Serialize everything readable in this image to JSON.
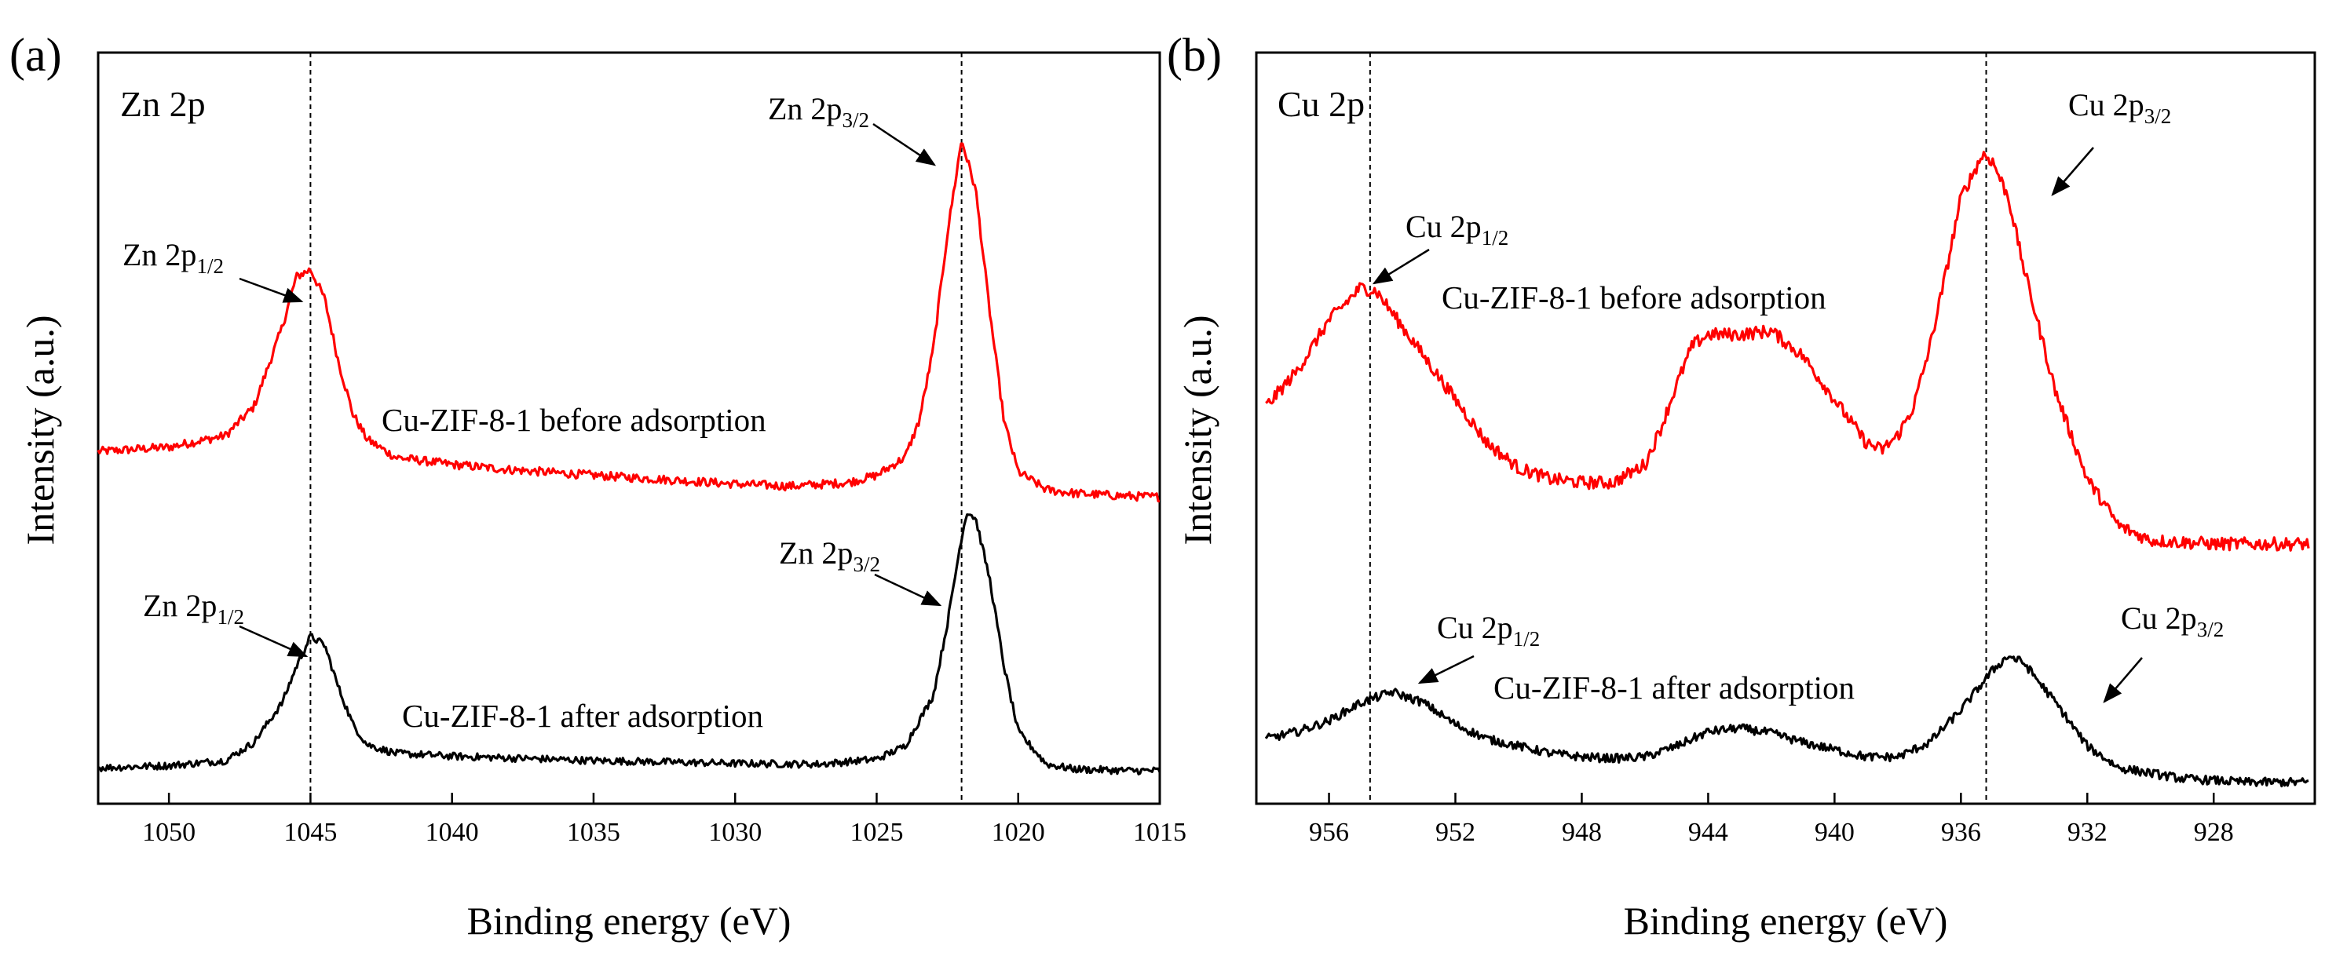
{
  "chart_data": [
    {
      "type": "line",
      "panel_label": "(a)",
      "title": "Zn 2p",
      "xlabel": "Binding energy (eV)",
      "ylabel": "Intensity (a.u.)",
      "xlim": [
        1052.5,
        1015
      ],
      "ylim": [
        0,
        100
      ],
      "x_reversed": true,
      "xticks": [
        1050,
        1045,
        1040,
        1035,
        1030,
        1025,
        1020,
        1015
      ],
      "vlines": [
        1045,
        1022
      ],
      "series": [
        {
          "name": "Cu-ZIF-8-1 before adsorption",
          "color": "#ff0000",
          "noise": 0.6,
          "points": [
            [
              1052.5,
              47.8
            ],
            [
              1050,
              48.4
            ],
            [
              1048,
              50
            ],
            [
              1047,
              54
            ],
            [
              1046,
              65
            ],
            [
              1045.5,
              72
            ],
            [
              1045,
              73
            ],
            [
              1044.5,
              69
            ],
            [
              1044,
              60
            ],
            [
              1043.5,
              53
            ],
            [
              1043,
              49.5
            ],
            [
              1042,
              47
            ],
            [
              1040,
              46
            ],
            [
              1038,
              45.3
            ],
            [
              1035,
              44.5
            ],
            [
              1032,
              43.8
            ],
            [
              1030,
              43.3
            ],
            [
              1028,
              43
            ],
            [
              1026,
              43.5
            ],
            [
              1025,
              44.5
            ],
            [
              1024,
              47
            ],
            [
              1023.5,
              52
            ],
            [
              1023,
              62
            ],
            [
              1022.5,
              78
            ],
            [
              1022,
              91
            ],
            [
              1021.5,
              84
            ],
            [
              1021,
              67
            ],
            [
              1020.5,
              52
            ],
            [
              1020,
              45
            ],
            [
              1019,
              42.5
            ],
            [
              1018,
              42
            ],
            [
              1016,
              41.6
            ],
            [
              1015,
              41.5
            ]
          ]
        },
        {
          "name": "Cu-ZIF-8-1 after adsorption",
          "color": "#000000",
          "noise": 0.5,
          "points": [
            [
              1052.5,
              4
            ],
            [
              1050,
              4.3
            ],
            [
              1048,
              5
            ],
            [
              1047,
              7.5
            ],
            [
              1046,
              13
            ],
            [
              1045.5,
              18
            ],
            [
              1045,
              22.2
            ],
            [
              1044.5,
              21
            ],
            [
              1044,
              15
            ],
            [
              1043.5,
              10
            ],
            [
              1043,
              7.2
            ],
            [
              1042,
              6
            ],
            [
              1040,
              5.6
            ],
            [
              1035,
              5
            ],
            [
              1030,
              4.6
            ],
            [
              1027,
              4.5
            ],
            [
              1025,
              5.2
            ],
            [
              1024,
              7
            ],
            [
              1023,
              14
            ],
            [
              1022.5,
              24
            ],
            [
              1022,
              36
            ],
            [
              1021.8,
              39.5
            ],
            [
              1021.5,
              38.5
            ],
            [
              1021,
              30
            ],
            [
              1020.5,
              18
            ],
            [
              1020,
              9
            ],
            [
              1019,
              4.5
            ],
            [
              1018,
              3.8
            ],
            [
              1016,
              3.6
            ],
            [
              1015,
              3.6
            ]
          ]
        }
      ],
      "annotations": [
        {
          "main": "Zn 2p",
          "sub": "1/2"
        },
        {
          "main": "Zn 2p",
          "sub": "3/2"
        },
        {
          "main": "Zn 2p",
          "sub": "1/2"
        },
        {
          "main": "Zn 2p",
          "sub": "3/2"
        }
      ]
    },
    {
      "type": "line",
      "panel_label": "(b)",
      "title": "Cu 2p",
      "xlabel": "Binding energy (eV)",
      "ylabel": "Intensity (a.u.)",
      "xlim": [
        958.3,
        924.8
      ],
      "ylim": [
        0,
        100
      ],
      "x_reversed": true,
      "xticks": [
        956,
        952,
        948,
        944,
        940,
        936,
        932,
        928
      ],
      "vlines": [
        954.7,
        935.2
      ],
      "series": [
        {
          "name": "Cu-ZIF-8-1 before adsorption",
          "color": "#ff0000",
          "noise": 0.9,
          "points": [
            [
              958,
              54
            ],
            [
              957,
              59
            ],
            [
              956,
              66
            ],
            [
              955,
              70.5
            ],
            [
              954.5,
              70
            ],
            [
              954,
              67
            ],
            [
              953,
              61
            ],
            [
              952,
              55
            ],
            [
              951,
              49
            ],
            [
              950,
              45.5
            ],
            [
              949,
              44
            ],
            [
              948,
              43.5
            ],
            [
              947,
              43.5
            ],
            [
              946,
              46
            ],
            [
              945.5,
              51
            ],
            [
              945,
              57
            ],
            [
              944.5,
              62.5
            ],
            [
              944,
              64
            ],
            [
              943,
              64
            ],
            [
              942,
              64.5
            ],
            [
              941,
              61
            ],
            [
              940,
              55
            ],
            [
              939,
              49
            ],
            [
              938.5,
              48
            ],
            [
              938,
              50
            ],
            [
              937.5,
              54
            ],
            [
              937,
              62
            ],
            [
              936.5,
              72
            ],
            [
              936,
              83
            ],
            [
              935.3,
              89
            ],
            [
              935,
              88
            ],
            [
              934.5,
              83
            ],
            [
              934,
              73
            ],
            [
              933,
              56
            ],
            [
              932,
              44
            ],
            [
              931,
              37.5
            ],
            [
              930,
              35.5
            ],
            [
              928,
              35
            ],
            [
              926,
              35
            ],
            [
              925,
              35
            ]
          ]
        },
        {
          "name": "Cu-ZIF-8-1 after adsorption",
          "color": "#000000",
          "noise": 0.6,
          "points": [
            [
              958,
              8
            ],
            [
              957,
              9
            ],
            [
              956,
              10.5
            ],
            [
              955,
              13
            ],
            [
              954,
              14.5
            ],
            [
              953,
              13
            ],
            [
              952,
              10
            ],
            [
              951,
              8
            ],
            [
              950,
              7
            ],
            [
              949,
              6
            ],
            [
              948,
              5.5
            ],
            [
              947,
              5.3
            ],
            [
              946,
              5.5
            ],
            [
              945,
              7
            ],
            [
              944,
              9
            ],
            [
              943,
              9.5
            ],
            [
              942,
              8.8
            ],
            [
              941,
              7.5
            ],
            [
              940,
              6.5
            ],
            [
              939,
              5.5
            ],
            [
              938,
              5.5
            ],
            [
              937,
              7.5
            ],
            [
              936,
              12
            ],
            [
              935,
              17.5
            ],
            [
              934.5,
              19.5
            ],
            [
              934,
              18.5
            ],
            [
              933,
              13
            ],
            [
              932,
              7
            ],
            [
              931,
              4
            ],
            [
              929,
              2.5
            ],
            [
              927,
              2
            ],
            [
              925,
              2
            ]
          ]
        }
      ],
      "annotations": [
        {
          "main": "Cu 2p",
          "sub": "1/2"
        },
        {
          "main": "Cu 2p",
          "sub": "3/2"
        },
        {
          "main": "Cu 2p",
          "sub": "1/2"
        },
        {
          "main": "Cu 2p",
          "sub": "3/2"
        }
      ]
    }
  ]
}
